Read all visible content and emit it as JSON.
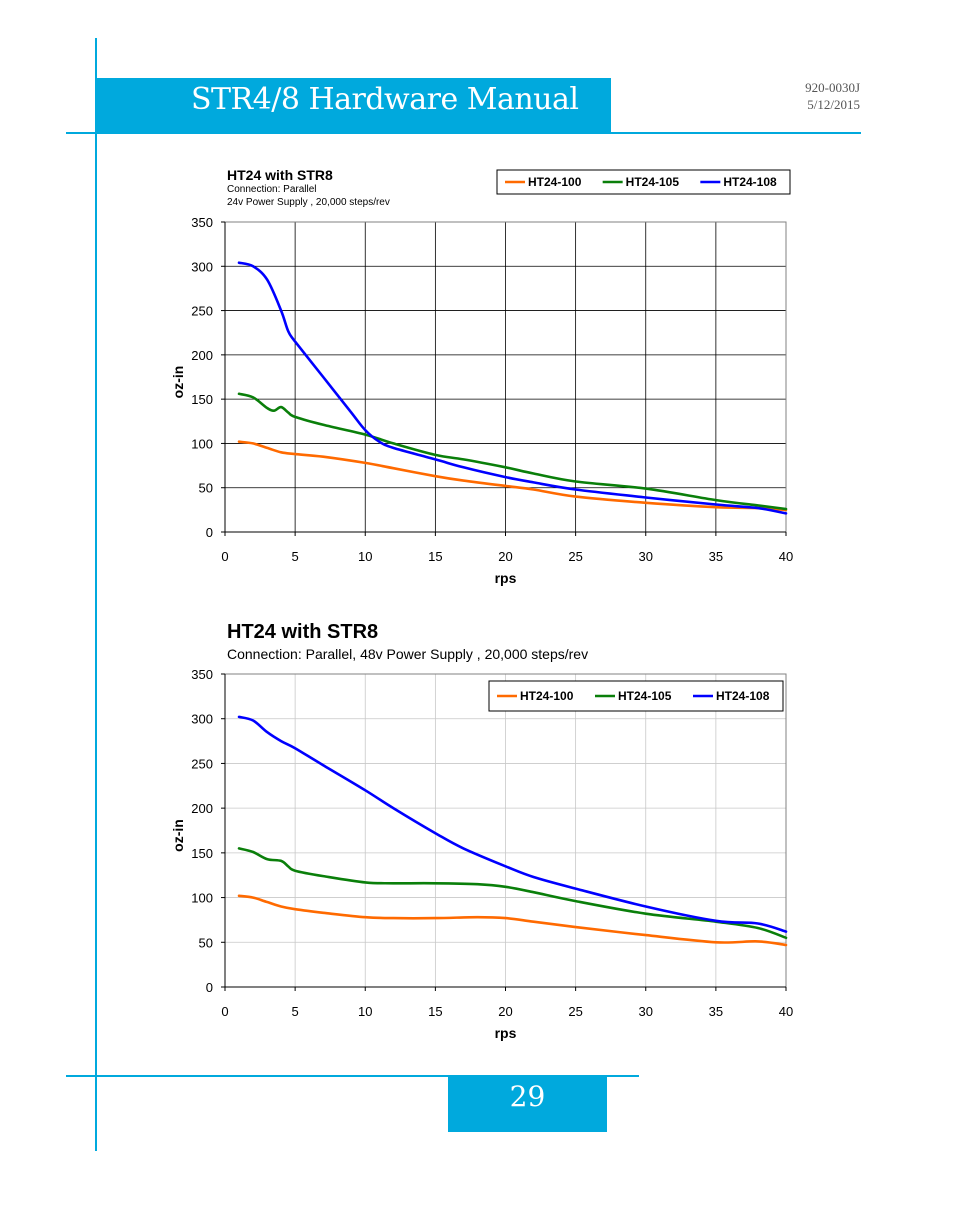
{
  "header": {
    "title": "STR4/8 Hardware Manual",
    "doc_number": "920-0030J",
    "doc_date": "5/12/2015"
  },
  "footer": {
    "page_number": "29"
  },
  "colors": {
    "accent": "#00a9dd",
    "ht24_100": "#ff6a00",
    "ht24_105": "#0a7f0a",
    "ht24_108": "#0000ff"
  },
  "chart_data": [
    {
      "type": "line",
      "title": "HT24 with STR8",
      "subtitle_lines": [
        "Connection: Parallel",
        "24v Power Supply , 20,000 steps/rev"
      ],
      "xlabel": "rps",
      "ylabel": "oz-in",
      "xlim": [
        0,
        40
      ],
      "ylim": [
        0,
        350
      ],
      "xticks": [
        0,
        5,
        10,
        15,
        20,
        25,
        30,
        35,
        40
      ],
      "yticks": [
        0,
        50,
        100,
        150,
        200,
        250,
        300,
        350
      ],
      "grid": true,
      "legend_position": "top-right",
      "series": [
        {
          "name": "HT24-100",
          "color": "#ff6a00",
          "x": [
            1,
            2,
            3,
            4,
            5,
            7,
            10,
            12,
            15,
            17,
            20,
            22,
            25,
            30,
            35,
            38,
            40
          ],
          "y": [
            102,
            100,
            95,
            90,
            88,
            85,
            78,
            72,
            63,
            58,
            52,
            48,
            40,
            33,
            28,
            27,
            25
          ]
        },
        {
          "name": "HT24-105",
          "color": "#0a7f0a",
          "x": [
            1,
            2,
            3,
            3.5,
            4,
            4.5,
            5,
            7,
            10,
            12,
            15,
            17,
            20,
            22,
            25,
            30,
            35,
            38,
            40
          ],
          "y": [
            156,
            152,
            140,
            137,
            141,
            135,
            130,
            121,
            110,
            100,
            87,
            82,
            73,
            66,
            57,
            49,
            36,
            30,
            26
          ]
        },
        {
          "name": "HT24-108",
          "color": "#0000ff",
          "x": [
            1,
            2,
            3,
            4,
            4.5,
            5,
            7,
            9,
            10,
            11,
            12,
            15,
            17,
            20,
            22,
            25,
            30,
            35,
            38,
            40
          ],
          "y": [
            304,
            300,
            285,
            250,
            227,
            215,
            175,
            135,
            115,
            102,
            95,
            82,
            73,
            62,
            56,
            48,
            39,
            31,
            27,
            21
          ]
        }
      ]
    },
    {
      "type": "line",
      "title": "HT24 with STR8",
      "subtitle_lines": [
        "Connection: Parallel, 48v Power Supply , 20,000 steps/rev"
      ],
      "xlabel": "rps",
      "ylabel": "oz-in",
      "xlim": [
        0,
        40
      ],
      "ylim": [
        0,
        350
      ],
      "xticks": [
        0,
        5,
        10,
        15,
        20,
        25,
        30,
        35,
        40
      ],
      "yticks": [
        0,
        50,
        100,
        150,
        200,
        250,
        300,
        350
      ],
      "grid": true,
      "legend_position": "top-right",
      "series": [
        {
          "name": "HT24-100",
          "color": "#ff6a00",
          "x": [
            1,
            2,
            3,
            4,
            5,
            7,
            10,
            12,
            15,
            18,
            20,
            22,
            25,
            30,
            35,
            38,
            40
          ],
          "y": [
            102,
            100,
            95,
            90,
            87,
            83,
            78,
            77,
            77,
            78,
            77,
            73,
            67,
            58,
            50,
            51,
            47
          ]
        },
        {
          "name": "HT24-105",
          "color": "#0a7f0a",
          "x": [
            1,
            2,
            3,
            4,
            4.5,
            5,
            7,
            10,
            12,
            15,
            18,
            20,
            22,
            25,
            30,
            35,
            38,
            40
          ],
          "y": [
            155,
            151,
            143,
            141,
            135,
            130,
            124,
            117,
            116,
            116,
            115,
            112,
            106,
            96,
            82,
            73,
            66,
            55
          ]
        },
        {
          "name": "HT24-108",
          "color": "#0000ff",
          "x": [
            1,
            2,
            3,
            4,
            5,
            7,
            10,
            12,
            15,
            17,
            20,
            22,
            25,
            30,
            35,
            38,
            40
          ],
          "y": [
            302,
            298,
            285,
            275,
            267,
            248,
            220,
            200,
            172,
            155,
            135,
            123,
            110,
            90,
            74,
            71,
            62
          ]
        }
      ]
    }
  ]
}
